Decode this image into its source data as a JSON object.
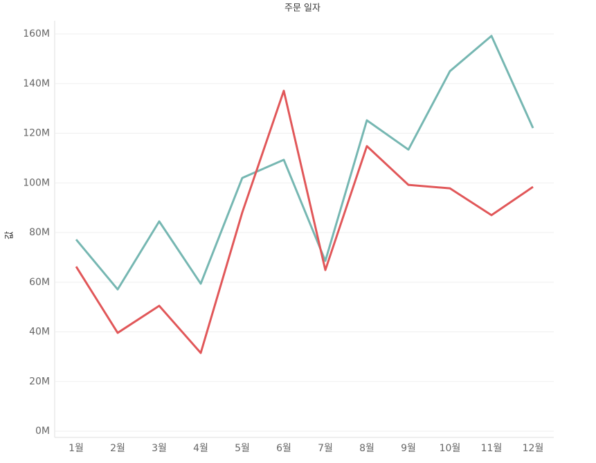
{
  "chart_data": {
    "type": "line",
    "x_label": "주문 일자",
    "y_label": "값",
    "categories": [
      "1월",
      "2월",
      "3월",
      "4월",
      "5월",
      "6월",
      "7월",
      "8월",
      "9월",
      "10월",
      "11월",
      "12월"
    ],
    "series": [
      {
        "color": "#76b7b2",
        "values": [
          77200000,
          57100000,
          84500000,
          59400000,
          102000000,
          109300000,
          68600000,
          125200000,
          113400000,
          145000000,
          159200000,
          122100000
        ]
      },
      {
        "color": "#e15759",
        "values": [
          66300000,
          39600000,
          50500000,
          31500000,
          88100000,
          137100000,
          64900000,
          114800000,
          99200000,
          97800000,
          87000000,
          98400000
        ]
      }
    ],
    "ylim": [
      0,
      160000000
    ],
    "yticks": [
      {
        "value": 0,
        "label": "0M"
      },
      {
        "value": 20000000,
        "label": "20M"
      },
      {
        "value": 40000000,
        "label": "40M"
      },
      {
        "value": 60000000,
        "label": "60M"
      },
      {
        "value": 80000000,
        "label": "80M"
      },
      {
        "value": 100000000,
        "label": "100M"
      },
      {
        "value": 120000000,
        "label": "120M"
      },
      {
        "value": 140000000,
        "label": "140M"
      },
      {
        "value": 160000000,
        "label": "160M"
      }
    ],
    "grid": true
  }
}
